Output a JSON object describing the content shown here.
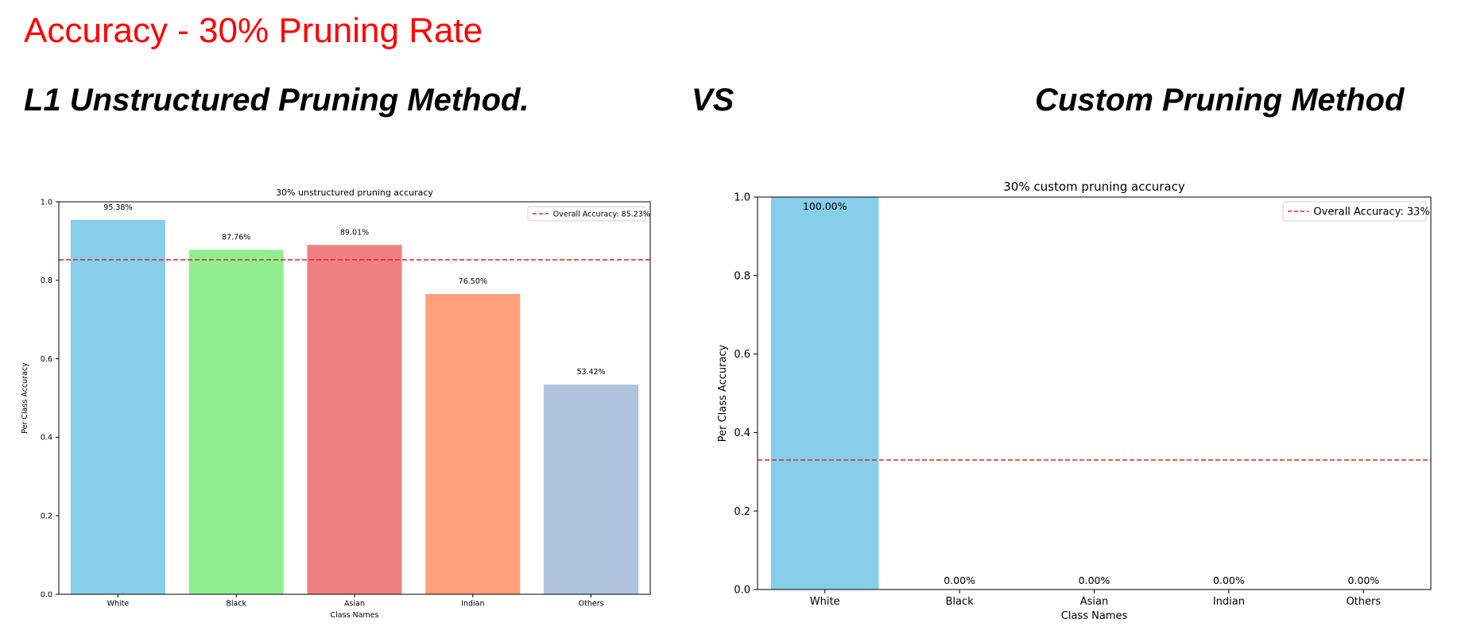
{
  "slide": {
    "title": "Accuracy - 30% Pruning Rate",
    "left_heading": "L1 Unstructured Pruning Method.",
    "vs_label": "VS",
    "right_heading": "Custom Pruning Method"
  },
  "chart_data": [
    {
      "type": "bar",
      "title": "30% unstructured pruning accuracy",
      "xlabel": "Class Names",
      "ylabel": "Per Class Accuracy",
      "categories": [
        "White",
        "Black",
        "Asian",
        "Indian",
        "Others"
      ],
      "values": [
        0.9538,
        0.8776,
        0.8901,
        0.765,
        0.5342
      ],
      "value_labels": [
        "95.38%",
        "87.76%",
        "89.01%",
        "76.50%",
        "53.42%"
      ],
      "colors": [
        "#87ceeb",
        "#90ee90",
        "#f08080",
        "#ffa07a",
        "#b0c4de"
      ],
      "ylim": [
        0,
        1.0
      ],
      "yticks": [
        0.0,
        0.2,
        0.4,
        0.6,
        0.8,
        1.0
      ],
      "ytick_labels": [
        "0.0",
        "0.2",
        "0.4",
        "0.6",
        "0.8",
        "1.0"
      ],
      "overall_accuracy": 0.8523,
      "legend_label": "Overall Accuracy: 85.23%",
      "legend_position": "upper right",
      "overall_line_color": "#d62728"
    },
    {
      "type": "bar",
      "title": "30% custom pruning accuracy",
      "xlabel": "Class Names",
      "ylabel": "Per Class Accuracy",
      "categories": [
        "White",
        "Black",
        "Asian",
        "Indian",
        "Others"
      ],
      "values": [
        1.0,
        0.0,
        0.0,
        0.0,
        0.0
      ],
      "value_labels": [
        "100.00%",
        "0.00%",
        "0.00%",
        "0.00%",
        "0.00%"
      ],
      "colors": [
        "#87ceeb",
        "#90ee90",
        "#f08080",
        "#ffa07a",
        "#b0c4de"
      ],
      "ylim": [
        0,
        1.0
      ],
      "yticks": [
        0.0,
        0.2,
        0.4,
        0.6,
        0.8,
        1.0
      ],
      "ytick_labels": [
        "0.0",
        "0.2",
        "0.4",
        "0.6",
        "0.8",
        "1.0"
      ],
      "overall_accuracy": 0.33,
      "legend_label": "Overall Accuracy: 33%",
      "legend_position": "upper right",
      "overall_line_color": "#d62728"
    }
  ]
}
